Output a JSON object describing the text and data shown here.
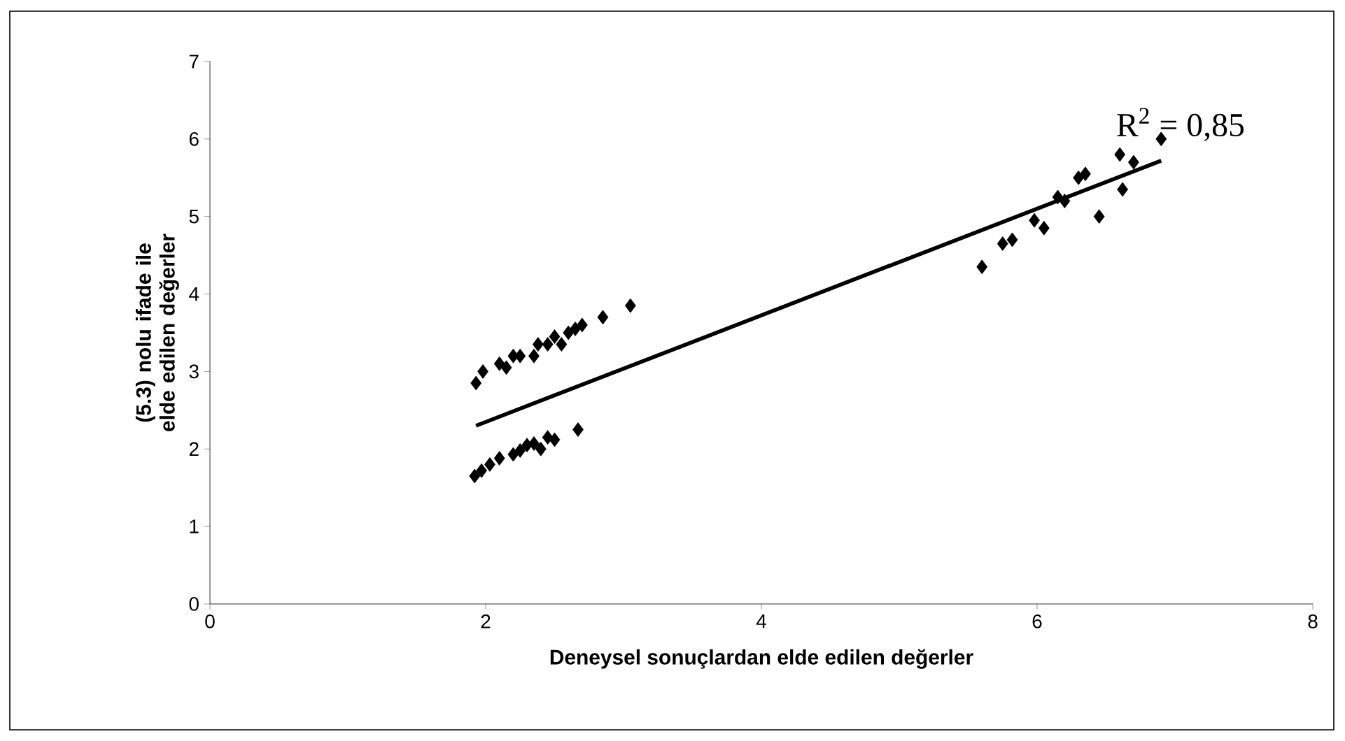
{
  "chart_data": {
    "type": "scatter",
    "xlabel": "Deneysel sonuçlardan elde edilen değerler",
    "ylabel": "(5.3) nolu ifade ile elde edilen değerler",
    "xlim": [
      0,
      8
    ],
    "ylim": [
      0,
      7
    ],
    "xticks": [
      0,
      2,
      4,
      6,
      8
    ],
    "yticks": [
      0,
      1,
      2,
      3,
      4,
      5,
      6,
      7
    ],
    "grid": false,
    "marker": "diamond",
    "annotations": [
      "R$^{2}$ = 0,85"
    ],
    "series": [
      {
        "color": "#000000",
        "x": [
          1.93,
          1.98,
          2.1,
          2.15,
          2.2,
          2.25,
          2.35,
          2.38,
          2.45,
          2.5,
          2.55,
          2.6,
          2.65,
          2.7,
          2.85,
          3.05,
          1.92,
          1.97,
          2.03,
          2.1,
          2.2,
          2.25,
          2.3,
          2.35,
          2.4,
          2.45,
          2.5,
          2.67,
          5.6,
          5.75,
          5.82,
          5.98,
          6.05,
          6.15,
          6.2,
          6.3,
          6.35,
          6.45,
          6.6,
          6.62,
          6.7,
          6.9
        ],
        "values": [
          2.85,
          3.0,
          3.1,
          3.05,
          3.2,
          3.2,
          3.2,
          3.35,
          3.35,
          3.45,
          3.35,
          3.5,
          3.55,
          3.6,
          3.7,
          3.85,
          1.65,
          1.72,
          1.8,
          1.88,
          1.93,
          1.98,
          2.05,
          2.07,
          2.0,
          2.15,
          2.12,
          2.25,
          4.35,
          4.65,
          4.7,
          4.95,
          4.85,
          5.25,
          5.2,
          5.5,
          5.55,
          5.0,
          5.8,
          5.35,
          5.7,
          6.0
        ]
      },
      {
        "type": "line",
        "color": "#000000",
        "marker": "none",
        "line_style": "solid",
        "x": [
          1.93,
          6.9
        ],
        "values": [
          2.3,
          5.72
        ]
      }
    ]
  }
}
